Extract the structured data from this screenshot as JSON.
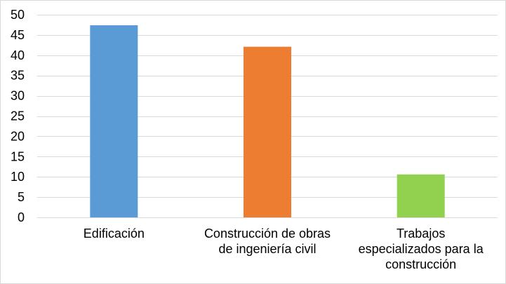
{
  "chart_data": {
    "type": "bar",
    "categories": [
      [
        "Edificación"
      ],
      [
        "Construcción de obras",
        "de ingeniería civil"
      ],
      [
        "Trabajos",
        "especializados para la",
        "construcción"
      ]
    ],
    "values": [
      47.4,
      42.1,
      10.6
    ],
    "colors": [
      "#5b9bd5",
      "#ed7d31",
      "#92d050"
    ],
    "yticks": [
      0,
      5,
      10,
      15,
      20,
      25,
      30,
      35,
      40,
      45,
      50
    ],
    "ylim": [
      0,
      50
    ],
    "grid": true,
    "title": "",
    "xlabel": "",
    "ylabel": ""
  }
}
